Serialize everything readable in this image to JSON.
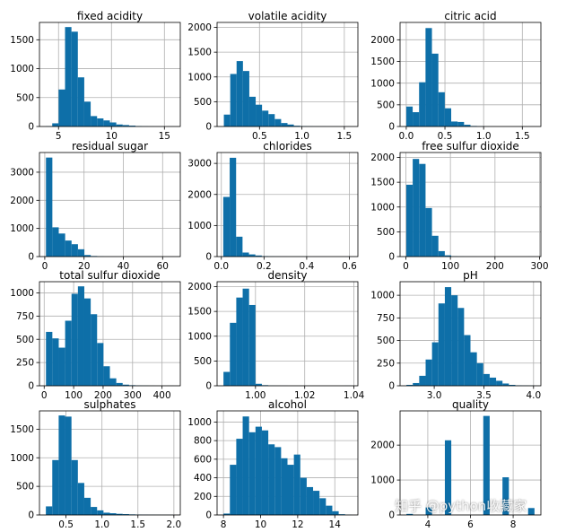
{
  "colors": {
    "bar": "#0e6fa8",
    "grid": "#b0b0b0",
    "axis": "#000000"
  },
  "watermark": "知乎 @python收藏家",
  "chart_data": [
    {
      "type": "bar",
      "title": "fixed acidity",
      "bin_range": [
        3.8,
        15.9
      ],
      "values": [
        5,
        55,
        640,
        1720,
        1640,
        850,
        430,
        180,
        140,
        105,
        70,
        35,
        25,
        15,
        8,
        4,
        2,
        1,
        0,
        1
      ],
      "xlim": [
        3.2,
        16.5
      ],
      "ylim": [
        0,
        1800
      ],
      "xticks": [
        5,
        10,
        15
      ],
      "xtick_labels": [
        "5",
        "10",
        "15"
      ],
      "yticks": [
        0,
        500,
        1000,
        1500
      ],
      "ytick_labels": [
        "0",
        "500",
        "1000",
        "1500"
      ],
      "grid": true
    },
    {
      "type": "bar",
      "title": "volatile acidity",
      "bin_range": [
        0.08,
        1.58
      ],
      "values": [
        240,
        1060,
        1320,
        1120,
        600,
        440,
        320,
        250,
        150,
        70,
        40,
        15,
        8,
        5,
        3,
        2,
        1,
        1,
        0,
        1
      ],
      "xlim": [
        0,
        1.66
      ],
      "ylim": [
        0,
        2100
      ],
      "xticks": [
        0.5,
        1.0,
        1.5
      ],
      "xtick_labels": [
        "0.5",
        "1.0",
        "1.5"
      ],
      "yticks": [
        0,
        500,
        1000,
        1500,
        2000
      ],
      "ytick_labels": [
        "0",
        "500",
        "1000",
        "1500",
        "2000"
      ],
      "grid": true
    },
    {
      "type": "bar",
      "title": "citric acid",
      "bin_range": [
        0,
        1.66
      ],
      "values": [
        460,
        330,
        1020,
        2270,
        1680,
        790,
        420,
        115,
        105,
        40,
        12,
        5,
        2,
        1,
        0,
        0,
        0,
        0,
        0,
        1
      ],
      "xlim": [
        -0.08,
        1.74
      ],
      "ylim": [
        0,
        2400
      ],
      "xticks": [
        0.0,
        0.5,
        1.0,
        1.5
      ],
      "xtick_labels": [
        "0.0",
        "0.5",
        "1.0",
        "1.5"
      ],
      "yticks": [
        0,
        500,
        1000,
        1500,
        2000
      ],
      "ytick_labels": [
        "0",
        "500",
        "1000",
        "1500",
        "2000"
      ],
      "grid": true
    },
    {
      "type": "bar",
      "title": "residual sugar",
      "bin_range": [
        0.6,
        65.8
      ],
      "values": [
        3520,
        1040,
        820,
        570,
        440,
        260,
        55,
        20,
        8,
        3,
        1,
        0,
        0,
        0,
        0,
        0,
        0,
        0,
        0,
        1
      ],
      "xlim": [
        -2.7,
        69
      ],
      "ylim": [
        0,
        3700
      ],
      "xticks": [
        0,
        20,
        40,
        60
      ],
      "xtick_labels": [
        "0",
        "20",
        "40",
        "60"
      ],
      "yticks": [
        0,
        1000,
        2000,
        3000
      ],
      "ytick_labels": [
        "0",
        "1000",
        "2000",
        "3000"
      ],
      "grid": true
    },
    {
      "type": "bar",
      "title": "chlorides",
      "bin_range": [
        0.009,
        0.611
      ],
      "values": [
        1920,
        3180,
        640,
        130,
        70,
        35,
        15,
        8,
        5,
        4,
        3,
        2,
        2,
        1,
        1,
        1,
        0,
        0,
        0,
        1
      ],
      "xlim": [
        -0.02,
        0.64
      ],
      "ylim": [
        0,
        3350
      ],
      "xticks": [
        0.0,
        0.2,
        0.4,
        0.6
      ],
      "xtick_labels": [
        "0.0",
        "0.2",
        "0.4",
        "0.6"
      ],
      "yticks": [
        0,
        1000,
        2000,
        3000
      ],
      "ytick_labels": [
        "0",
        "1000",
        "2000",
        "3000"
      ],
      "grid": true
    },
    {
      "type": "bar",
      "title": "free sulfur dioxide",
      "bin_range": [
        1,
        289
      ],
      "values": [
        1450,
        1970,
        1870,
        980,
        420,
        110,
        25,
        8,
        3,
        2,
        1,
        0,
        0,
        0,
        0,
        0,
        0,
        0,
        0,
        1
      ],
      "xlim": [
        -13,
        303
      ],
      "ylim": [
        0,
        2100
      ],
      "xticks": [
        0,
        100,
        200,
        300
      ],
      "xtick_labels": [
        "0",
        "100",
        "200",
        "300"
      ],
      "yticks": [
        0,
        500,
        1000,
        1500,
        2000
      ],
      "ytick_labels": [
        "0",
        "500",
        "1000",
        "1500",
        "2000"
      ],
      "grid": true
    },
    {
      "type": "bar",
      "title": "total sulfur dioxide",
      "bin_range": [
        6,
        440
      ],
      "values": [
        580,
        510,
        410,
        700,
        990,
        1070,
        940,
        770,
        460,
        210,
        80,
        30,
        12,
        6,
        3,
        2,
        1,
        0,
        0,
        1
      ],
      "xlim": [
        -16,
        462
      ],
      "ylim": [
        0,
        1120
      ],
      "xticks": [
        0,
        100,
        200,
        300,
        400
      ],
      "xtick_labels": [
        "0",
        "100",
        "200",
        "300",
        "400"
      ],
      "yticks": [
        0,
        250,
        500,
        750,
        1000
      ],
      "ytick_labels": [
        "0",
        "250",
        "500",
        "750",
        "1000"
      ],
      "grid": true
    },
    {
      "type": "bar",
      "title": "density",
      "bin_range": [
        0.987,
        1.039
      ],
      "values": [
        280,
        1270,
        1780,
        1960,
        1630,
        40,
        12,
        4,
        2,
        1,
        0,
        0,
        0,
        0,
        0,
        0,
        0,
        0,
        0,
        1
      ],
      "xlim": [
        0.9844,
        1.0416
      ],
      "ylim": [
        0,
        2100
      ],
      "xticks": [
        1.0,
        1.02,
        1.04
      ],
      "xtick_labels": [
        "1.00",
        "1.02",
        "1.04"
      ],
      "yticks": [
        0,
        500,
        1000,
        1500,
        2000
      ],
      "ytick_labels": [
        "0",
        "500",
        "1000",
        "1500",
        "2000"
      ],
      "grid": true
    },
    {
      "type": "bar",
      "title": "pH",
      "bin_range": [
        2.72,
        4.01
      ],
      "values": [
        10,
        30,
        110,
        290,
        480,
        910,
        1090,
        1000,
        860,
        560,
        370,
        250,
        130,
        90,
        55,
        25,
        10,
        5,
        3,
        2
      ],
      "xlim": [
        2.656,
        4.074
      ],
      "ylim": [
        0,
        1150
      ],
      "xticks": [
        3.0,
        3.5,
        4.0
      ],
      "xtick_labels": [
        "3.0",
        "3.5",
        "4.0"
      ],
      "yticks": [
        0,
        250,
        500,
        750,
        1000
      ],
      "ytick_labels": [
        "0",
        "250",
        "500",
        "750",
        "1000"
      ],
      "grid": true
    },
    {
      "type": "bar",
      "title": "sulphates",
      "bin_range": [
        0.22,
        2.0
      ],
      "values": [
        150,
        960,
        1740,
        1720,
        960,
        560,
        300,
        140,
        80,
        40,
        30,
        20,
        15,
        10,
        6,
        4,
        3,
        2,
        1,
        1
      ],
      "xlim": [
        0.131,
        2.089
      ],
      "ylim": [
        0,
        1820
      ],
      "xticks": [
        0.5,
        1.0,
        1.5,
        2.0
      ],
      "xtick_labels": [
        "0.5",
        "1.0",
        "1.5",
        "2.0"
      ],
      "yticks": [
        0,
        500,
        1000,
        1500
      ],
      "ytick_labels": [
        "0",
        "500",
        "1000",
        "1500"
      ],
      "grid": true
    },
    {
      "type": "bar",
      "title": "alcohol",
      "bin_range": [
        8.0,
        14.9
      ],
      "values": [
        15,
        540,
        820,
        1060,
        890,
        950,
        910,
        760,
        730,
        610,
        540,
        650,
        400,
        300,
        260,
        180,
        100,
        40,
        8,
        2
      ],
      "xlim": [
        7.655,
        15.245
      ],
      "ylim": [
        0,
        1120
      ],
      "xticks": [
        8,
        10,
        12,
        14
      ],
      "xtick_labels": [
        "8",
        "10",
        "12",
        "14"
      ],
      "yticks": [
        0,
        200,
        400,
        600,
        800,
        1000
      ],
      "ytick_labels": [
        "0",
        "200",
        "400",
        "600",
        "800",
        "1000"
      ],
      "grid": true
    },
    {
      "type": "bar",
      "title": "quality",
      "bin_range": [
        3,
        9
      ],
      "values": [
        30,
        0,
        0,
        216,
        0,
        0,
        2138,
        0,
        0,
        0,
        0,
        0,
        2836,
        0,
        0,
        1079,
        0,
        0,
        0,
        198
      ],
      "xlim": [
        2.7,
        9.3
      ],
      "ylim": [
        0,
        2980
      ],
      "xticks": [
        4,
        6,
        8
      ],
      "xtick_labels": [
        "4",
        "6",
        "8"
      ],
      "yticks": [
        0,
        1000,
        2000
      ],
      "ytick_labels": [
        "0",
        "1000",
        "2000"
      ],
      "grid": true
    }
  ]
}
